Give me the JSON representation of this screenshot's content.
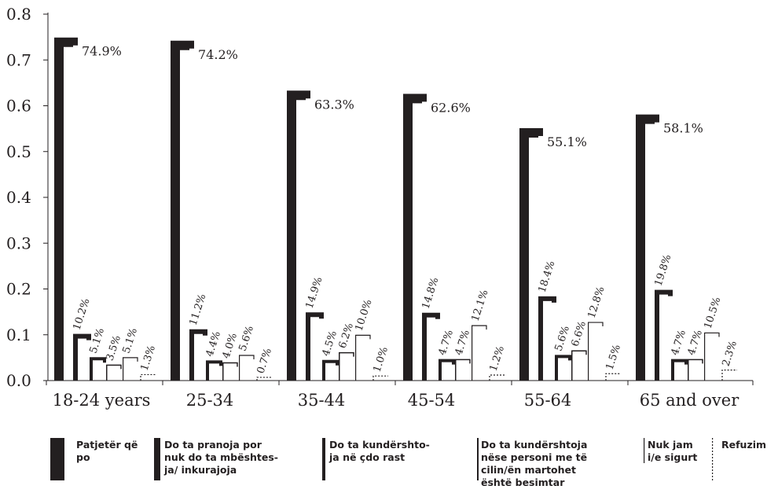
{
  "chart_data": {
    "type": "bar",
    "title": "",
    "xlabel": "",
    "ylabel": "",
    "ylim": [
      0,
      0.8
    ],
    "yticks": [
      "0.0",
      "0.1",
      "0.2",
      "0.3",
      "0.4",
      "0.5",
      "0.6",
      "0.7",
      "0.8"
    ],
    "grid": false,
    "legend_position": "bottom",
    "categories": [
      "18-24 years",
      "25-34",
      "35-44",
      "45-54",
      "55-64",
      "65 and over"
    ],
    "series": [
      {
        "name": "Patjetër që po",
        "values": [
          0.749,
          0.742,
          0.633,
          0.626,
          0.551,
          0.581
        ],
        "labels": [
          "74.9%",
          "74.2%",
          "63.3%",
          "62.6%",
          "55.1%",
          "58.1%"
        ],
        "style": "thick"
      },
      {
        "name": "Do ta pranoja por nuk do ta mbështes- ja/ inkurajoja",
        "values": [
          0.102,
          0.112,
          0.149,
          0.148,
          0.184,
          0.198
        ],
        "labels": [
          "10.2%",
          "11.2%",
          "14.9%",
          "14.8%",
          "18.4%",
          "19.8%"
        ],
        "style": "medium"
      },
      {
        "name": "Do ta kundërshto- ja në çdo rast",
        "values": [
          0.051,
          0.044,
          0.045,
          0.047,
          0.056,
          0.047
        ],
        "labels": [
          "5.1%",
          "4.4%",
          "4.5%",
          "4.7%",
          "5.6%",
          "4.7%"
        ],
        "style": "thin"
      },
      {
        "name": "Do ta kundërshtoja nëse personi me të cilin/ën martohet është besimtar",
        "values": [
          0.035,
          0.04,
          0.062,
          0.047,
          0.066,
          0.047
        ],
        "labels": [
          "3.5%",
          "4.0%",
          "6.2%",
          "4.7%",
          "6.6%",
          "4.7%"
        ],
        "style": "hair"
      },
      {
        "name": "Nuk jam i/e sigurt",
        "values": [
          0.051,
          0.056,
          0.1,
          0.121,
          0.128,
          0.105
        ],
        "labels": [
          "5.1%",
          "5.6%",
          "10.0%",
          "12.1%",
          "12.8%",
          "10.5%"
        ],
        "style": "hairline"
      },
      {
        "name": "Refuzim",
        "values": [
          0.013,
          0.007,
          0.01,
          0.012,
          0.015,
          0.023
        ],
        "labels": [
          "1.3%",
          "0.7%",
          "1.0%",
          "1.2%",
          "1.5%",
          "2.3%"
        ],
        "style": "dotted"
      }
    ]
  },
  "legend": [
    {
      "lines": [
        "Patjetër që",
        "po"
      ]
    },
    {
      "lines": [
        "Do ta pranoja por",
        "nuk do ta mbështes-",
        "ja/ inkurajoja"
      ]
    },
    {
      "lines": [
        "Do ta kundërshto-",
        "ja në çdo rast"
      ]
    },
    {
      "lines": [
        "Do ta kundërshtoja",
        "nëse personi me të",
        "cilin/ën martohet",
        "është besimtar"
      ]
    },
    {
      "lines": [
        "Nuk jam",
        "i/e sigurt"
      ]
    },
    {
      "lines": [
        "Refuzim"
      ]
    }
  ],
  "colors": {
    "ink": "#231f20",
    "background": "#ffffff"
  }
}
